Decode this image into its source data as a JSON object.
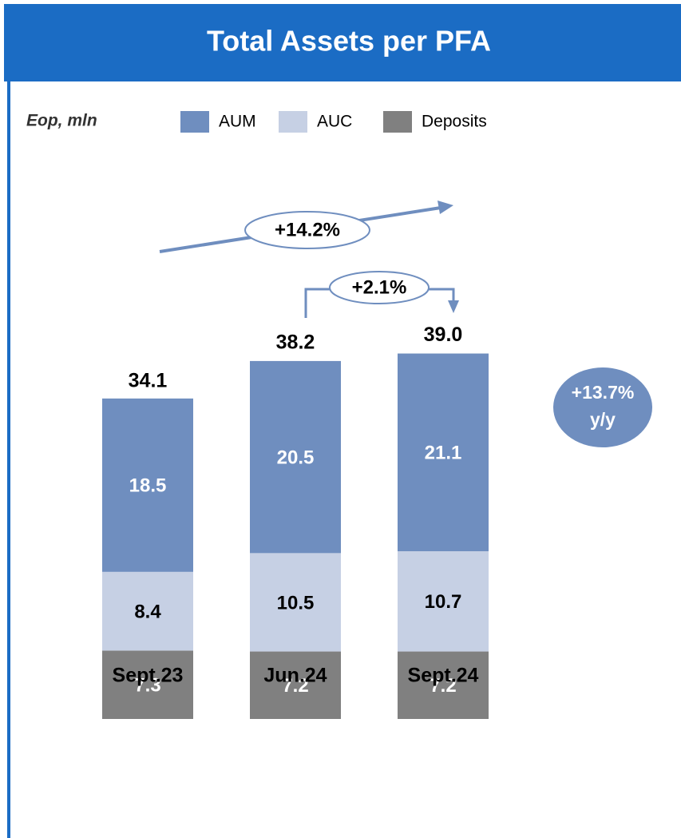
{
  "chart_data": {
    "type": "stacked_bar",
    "title": "Total Assets per PFA",
    "unit_label": "Eop, mln",
    "categories": [
      "Sept.23",
      "Jun.24",
      "Sept.24"
    ],
    "series": [
      {
        "name": "Deposits",
        "color": "#808080",
        "label_color": "#ffffff",
        "values": [
          7.3,
          7.2,
          7.2
        ]
      },
      {
        "name": "AUC",
        "color": "#c6d0e4",
        "label_color": "#000000",
        "values": [
          8.4,
          10.5,
          10.7
        ]
      },
      {
        "name": "AUM",
        "color": "#6f8ebf",
        "label_color": "#ffffff",
        "values": [
          18.5,
          20.5,
          21.1
        ]
      }
    ],
    "totals": {
      "values": [
        34.1,
        38.2,
        39
      ],
      "value_labels": [
        "34.1",
        "38.2",
        "39.0"
      ]
    },
    "growth_total": "+14.2%",
    "growth_qoq": "+2.1%",
    "growth_aum": [
      "+13.7%",
      "y/y"
    ]
  }
}
